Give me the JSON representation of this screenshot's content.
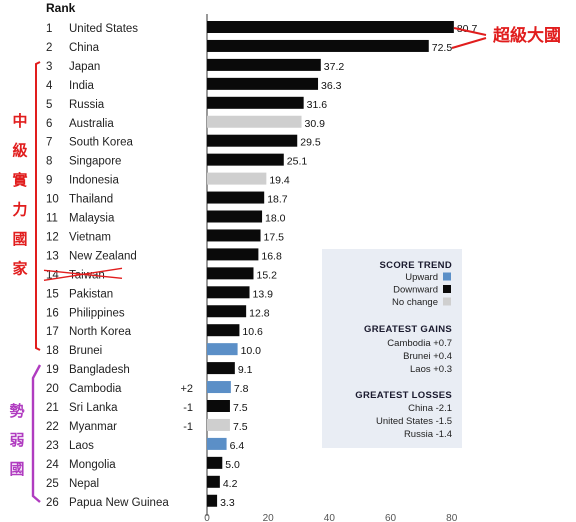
{
  "chart_data": {
    "type": "bar",
    "orientation": "horizontal",
    "rank_header": "Rank",
    "xlim": [
      0,
      85
    ],
    "x_ticks": [
      "0",
      "20",
      "40",
      "60",
      "80"
    ],
    "grid": false,
    "rows": [
      {
        "rank": "1",
        "country": "United States",
        "value": 80.7,
        "label": "80.7",
        "trend": "down",
        "change": ""
      },
      {
        "rank": "2",
        "country": "China",
        "value": 72.5,
        "label": "72.5",
        "trend": "down",
        "change": ""
      },
      {
        "rank": "3",
        "country": "Japan",
        "value": 37.2,
        "label": "37.2",
        "trend": "down",
        "change": ""
      },
      {
        "rank": "4",
        "country": "India",
        "value": 36.3,
        "label": "36.3",
        "trend": "down",
        "change": ""
      },
      {
        "rank": "5",
        "country": "Russia",
        "value": 31.6,
        "label": "31.6",
        "trend": "down",
        "change": ""
      },
      {
        "rank": "6",
        "country": "Australia",
        "value": 30.9,
        "label": "30.9",
        "trend": "none",
        "change": ""
      },
      {
        "rank": "7",
        "country": "South Korea",
        "value": 29.5,
        "label": "29.5",
        "trend": "down",
        "change": ""
      },
      {
        "rank": "8",
        "country": "Singapore",
        "value": 25.1,
        "label": "25.1",
        "trend": "down",
        "change": ""
      },
      {
        "rank": "9",
        "country": "Indonesia",
        "value": 19.4,
        "label": "19.4",
        "trend": "none",
        "change": ""
      },
      {
        "rank": "10",
        "country": "Thailand",
        "value": 18.7,
        "label": "18.7",
        "trend": "down",
        "change": ""
      },
      {
        "rank": "11",
        "country": "Malaysia",
        "value": 18.0,
        "label": "18.0",
        "trend": "down",
        "change": ""
      },
      {
        "rank": "12",
        "country": "Vietnam",
        "value": 17.5,
        "label": "17.5",
        "trend": "down",
        "change": ""
      },
      {
        "rank": "13",
        "country": "New Zealand",
        "value": 16.8,
        "label": "16.8",
        "trend": "down",
        "change": ""
      },
      {
        "rank": "14",
        "country": "Taiwan",
        "value": 15.2,
        "label": "15.2",
        "trend": "down",
        "change": "",
        "struck": true
      },
      {
        "rank": "15",
        "country": "Pakistan",
        "value": 13.9,
        "label": "13.9",
        "trend": "down",
        "change": ""
      },
      {
        "rank": "16",
        "country": "Philippines",
        "value": 12.8,
        "label": "12.8",
        "trend": "down",
        "change": ""
      },
      {
        "rank": "17",
        "country": "North Korea",
        "value": 10.6,
        "label": "10.6",
        "trend": "down",
        "change": ""
      },
      {
        "rank": "18",
        "country": "Brunei",
        "value": 10.0,
        "label": "10.0",
        "trend": "up",
        "change": ""
      },
      {
        "rank": "19",
        "country": "Bangladesh",
        "value": 9.1,
        "label": "9.1",
        "trend": "down",
        "change": ""
      },
      {
        "rank": "20",
        "country": "Cambodia",
        "value": 7.8,
        "label": "7.8",
        "trend": "up",
        "change": "+2"
      },
      {
        "rank": "21",
        "country": "Sri Lanka",
        "value": 7.5,
        "label": "7.5",
        "trend": "down",
        "change": "-1"
      },
      {
        "rank": "22",
        "country": "Myanmar",
        "value": 7.5,
        "label": "7.5",
        "trend": "none",
        "change": "-1"
      },
      {
        "rank": "23",
        "country": "Laos",
        "value": 6.4,
        "label": "6.4",
        "trend": "up",
        "change": ""
      },
      {
        "rank": "24",
        "country": "Mongolia",
        "value": 5.0,
        "label": "5.0",
        "trend": "down",
        "change": ""
      },
      {
        "rank": "25",
        "country": "Nepal",
        "value": 4.2,
        "label": "4.2",
        "trend": "down",
        "change": ""
      },
      {
        "rank": "26",
        "country": "Papua New Guinea",
        "value": 3.3,
        "label": "3.3",
        "trend": "down",
        "change": ""
      }
    ],
    "colors": {
      "up": "#5b8fc7",
      "down": "#0a0a0a",
      "none": "#cfcfcf",
      "annotation": "#e11d1d",
      "annotation_weak": "#b03cc0"
    },
    "legend": {
      "score_trend_title": "SCORE TREND",
      "items": [
        {
          "key": "up",
          "label": "Upward"
        },
        {
          "key": "down",
          "label": "Downward"
        },
        {
          "key": "none",
          "label": "No change"
        }
      ],
      "gains_title": "GREATEST GAINS",
      "gains": [
        "Cambodia +0.7",
        "Brunei +0.4",
        "Laos +0.3"
      ],
      "losses_title": "GREATEST LOSSES",
      "losses": [
        "China -2.1",
        "United States -1.5",
        "Russia -1.4"
      ]
    },
    "annotations": {
      "superpowers": "超級大國",
      "middle_powers": [
        "中",
        "級",
        "實",
        "力",
        "國",
        "家"
      ],
      "weak_states": [
        "勢",
        "弱",
        "國"
      ]
    }
  }
}
